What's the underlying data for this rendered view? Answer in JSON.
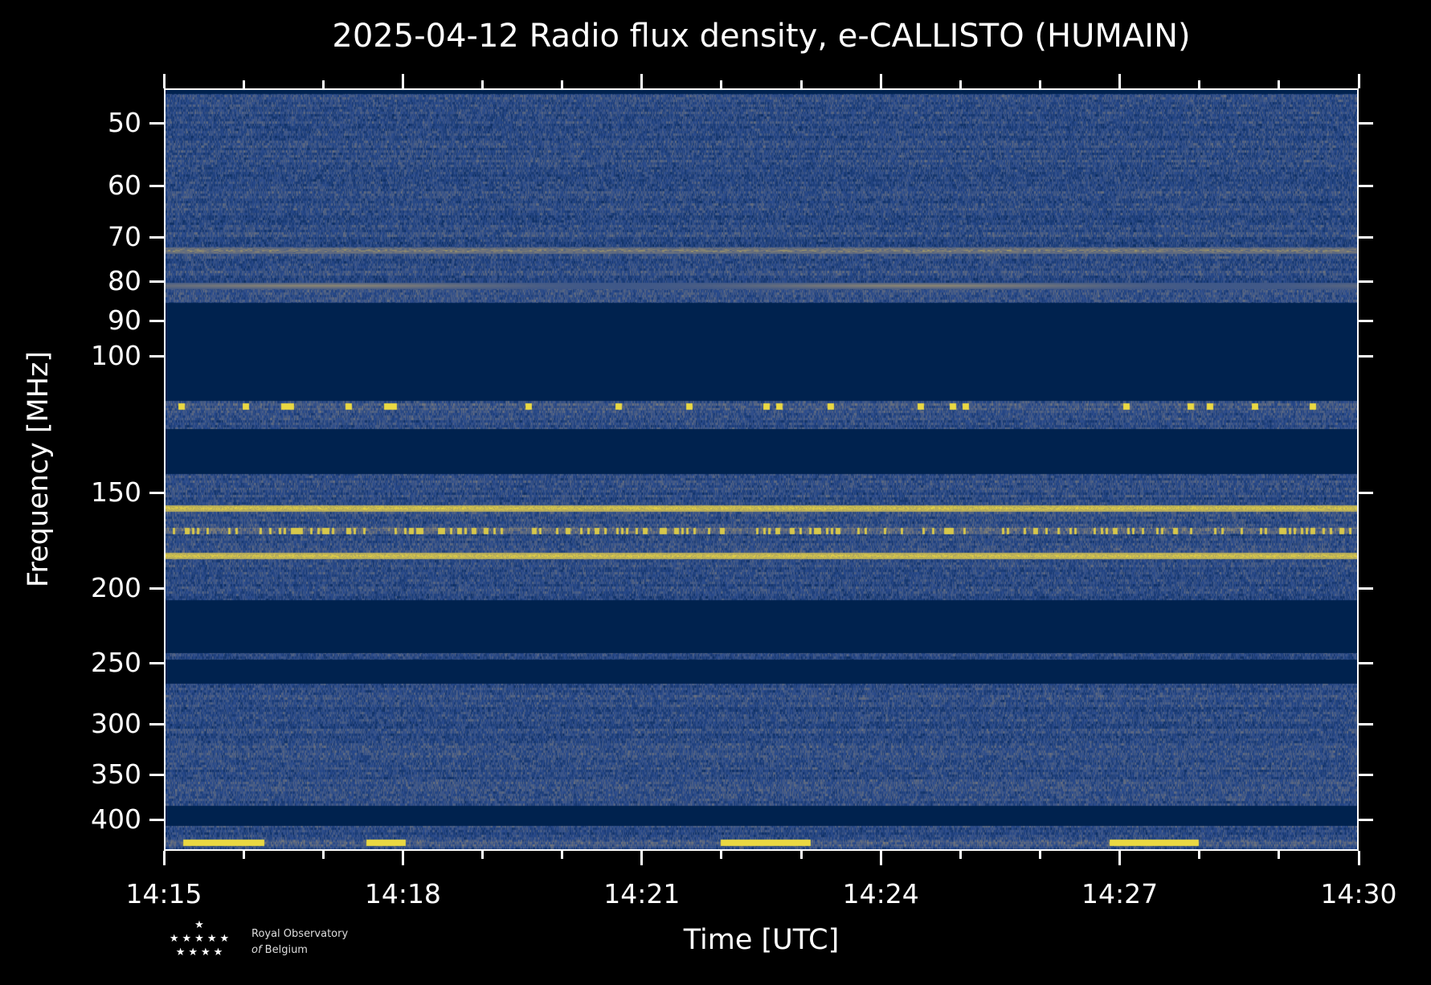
{
  "chart_data": {
    "type": "heatmap",
    "title": "2025-04-12 Radio flux density, e-CALLISTO (HUMAIN)",
    "xlabel": "Time [UTC]",
    "ylabel": "Frequency [MHz]",
    "x_ticks": [
      "14:15",
      "14:18",
      "14:21",
      "14:24",
      "14:27",
      "14:30"
    ],
    "xlim": [
      "14:15",
      "14:30"
    ],
    "y_ticks": [
      50,
      60,
      70,
      80,
      90,
      100,
      150,
      200,
      250,
      300,
      350,
      400
    ],
    "ylim": [
      45,
      425
    ],
    "colormap": [
      "#00224e",
      "#2a4b8d",
      "#7c7b78",
      "#fee838"
    ],
    "data_bands_mhz": [
      [
        45,
        85
      ],
      [
        120,
        130
      ],
      [
        143,
        205
      ],
      [
        245,
        248
      ],
      [
        265,
        380
      ],
      [
        405,
        425
      ]
    ],
    "bright_lines_mhz": [
      73,
      81,
      122,
      158,
      170,
      183,
      418
    ]
  },
  "logo": {
    "stars": "★",
    "stars_row2": "★★★★★",
    "stars_row3": "★★★★",
    "line1": "Royal Observatory",
    "line2_italic": "of",
    "line2": "Belgium"
  }
}
